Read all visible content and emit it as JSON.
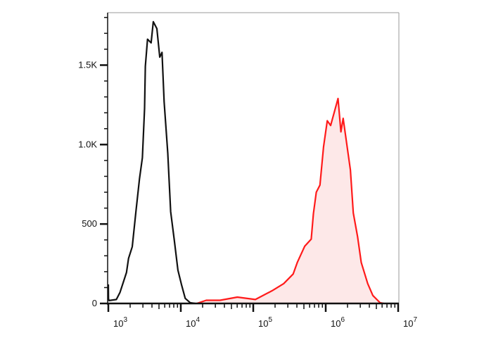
{
  "chart_data": {
    "type": "area",
    "title": "",
    "xlabel": "",
    "ylabel": "",
    "xscale": "log",
    "xlim": [
      1000,
      10000000
    ],
    "ylim": [
      0,
      1830
    ],
    "grid": false,
    "x_ticks": [
      {
        "value": 1000,
        "base": "10",
        "exp": "3"
      },
      {
        "value": 10000,
        "base": "10",
        "exp": "4"
      },
      {
        "value": 100000,
        "base": "10",
        "exp": "5"
      },
      {
        "value": 1000000,
        "base": "10",
        "exp": "6"
      },
      {
        "value": 10000000,
        "base": "10",
        "exp": "7"
      }
    ],
    "y_ticks": [
      {
        "value": 0,
        "label": "0"
      },
      {
        "value": 500,
        "label": "500"
      },
      {
        "value": 1000,
        "label": "1.0K"
      },
      {
        "value": 1500,
        "label": "1.5K"
      }
    ],
    "series": [
      {
        "color": "#111111",
        "fill": "none",
        "x": [
          1000,
          1005,
          1020,
          1290,
          1450,
          1780,
          1900,
          2140,
          2400,
          2690,
          2950,
          3160,
          3240,
          3470,
          3890,
          4170,
          4680,
          5130,
          5500,
          5890,
          6610,
          7240,
          8130,
          9120,
          10200,
          11500,
          13500,
          15800
        ],
        "y": [
          120,
          30,
          18,
          25,
          70,
          195,
          283,
          357,
          578,
          785,
          917,
          1227,
          1493,
          1663,
          1640,
          1773,
          1730,
          1550,
          1580,
          1270,
          945,
          578,
          400,
          210,
          120,
          32,
          5,
          0
        ]
      },
      {
        "color": "#ff1a1a",
        "fill": "#fde8e8",
        "x": [
          16600,
          22400,
          34700,
          60300,
          107000,
          182000,
          263000,
          355000,
          407000,
          513000,
          631000,
          676000,
          741000,
          832000,
          933000,
          1050000,
          1170000,
          1480000,
          1620000,
          1740000,
          2190000,
          2400000,
          2750000,
          3090000,
          3800000,
          4470000,
          5620000,
          6310000
        ],
        "y": [
          0,
          20,
          20,
          40,
          25,
          80,
          125,
          185,
          260,
          360,
          405,
          565,
          700,
          745,
          985,
          1150,
          1120,
          1290,
          1080,
          1165,
          840,
          570,
          420,
          258,
          125,
          50,
          5,
          0
        ]
      }
    ]
  }
}
